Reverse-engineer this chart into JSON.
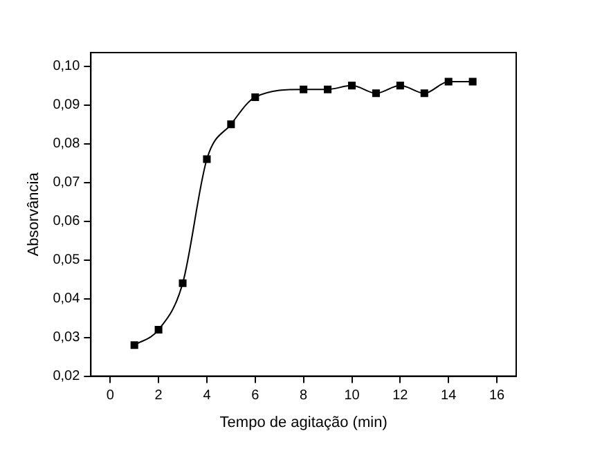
{
  "chart_data": {
    "type": "line",
    "xlabel": "Tempo de agitação (min)",
    "ylabel": "Absorvância",
    "x": [
      1,
      2,
      3,
      4,
      5,
      6,
      8,
      9,
      10,
      11,
      12,
      13,
      14,
      15
    ],
    "series": [
      {
        "color": "#000000",
        "values": [
          0.028,
          0.032,
          0.044,
          0.076,
          0.085,
          0.092,
          0.094,
          0.094,
          0.095,
          0.093,
          0.095,
          0.093,
          0.096,
          0.096
        ]
      }
    ],
    "xlim": [
      -0.8,
      16.8
    ],
    "xticks": [
      0,
      2,
      4,
      6,
      8,
      10,
      12,
      14,
      16
    ],
    "ylim": [
      0.02,
      0.1035
    ],
    "yticks": [
      {
        "value": 0.02,
        "label": "0,02"
      },
      {
        "value": 0.03,
        "label": "0,03"
      },
      {
        "value": 0.04,
        "label": "0,04"
      },
      {
        "value": 0.05,
        "label": "0,05"
      },
      {
        "value": 0.06,
        "label": "0,06"
      },
      {
        "value": 0.07,
        "label": "0,07"
      },
      {
        "value": 0.08,
        "label": "0,08"
      },
      {
        "value": 0.09,
        "label": "0,09"
      },
      {
        "value": 0.1,
        "label": "0,10"
      }
    ],
    "marker": "square",
    "line_style": "solid",
    "grid": false,
    "legend": false
  }
}
